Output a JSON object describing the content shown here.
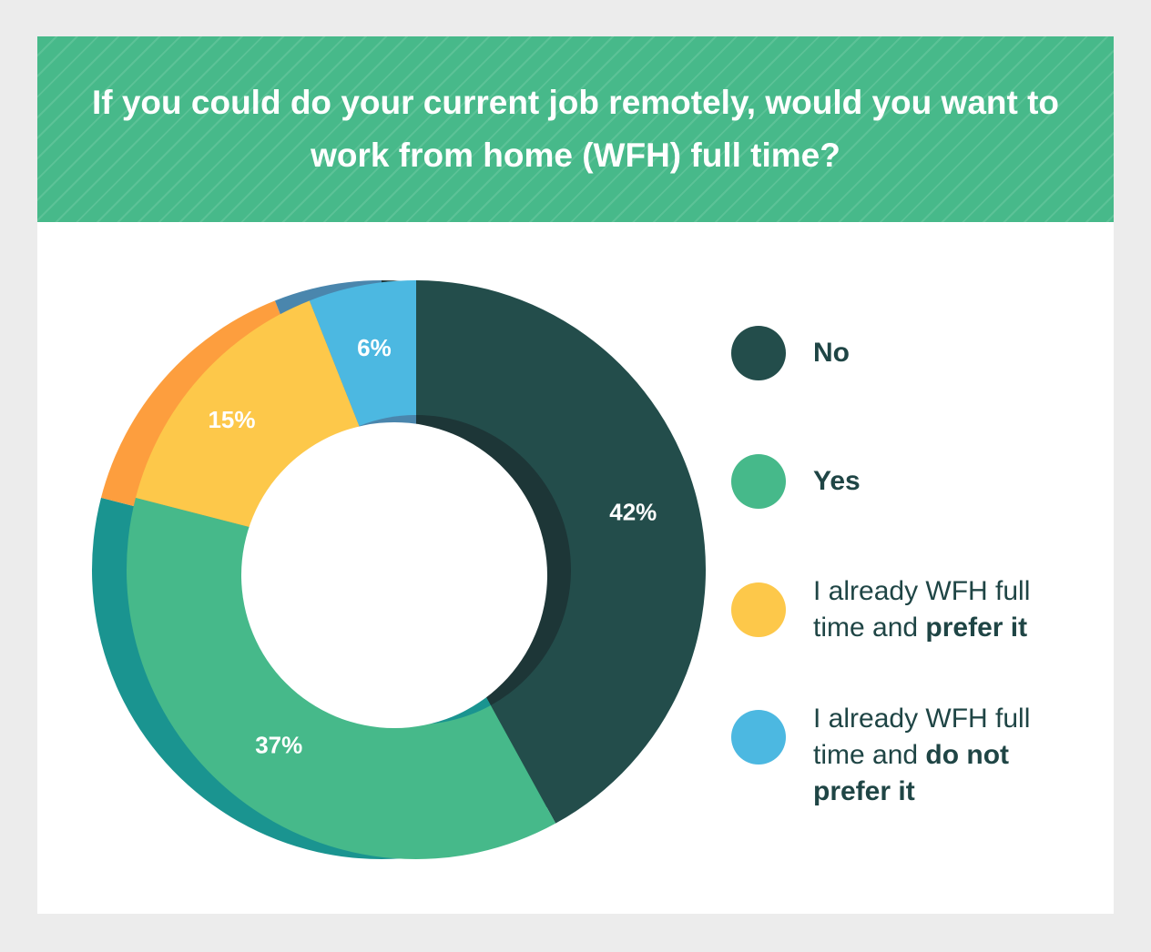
{
  "chart_data": {
    "type": "donut",
    "title": "If you could do your current job remotely, would you want to work from home (WFH) full time?",
    "categories": [
      {
        "bold": "No"
      },
      {
        "bold": "Yes"
      },
      {
        "plain": "I already WFH full time and",
        "bold": "prefer it"
      },
      {
        "plain": "I already WFH full time and",
        "bold": "do not prefer it"
      }
    ],
    "values": [
      42,
      37,
      15,
      6
    ],
    "value_labels": [
      "42%",
      "37%",
      "15%",
      "6%"
    ],
    "colors": [
      "#234d4b",
      "#46b98a",
      "#fdc84a",
      "#4cb8e1"
    ],
    "shadow_colors": [
      "#1d3637",
      "#1a9490",
      "#fd9e3e",
      "#4a86ad"
    ]
  }
}
